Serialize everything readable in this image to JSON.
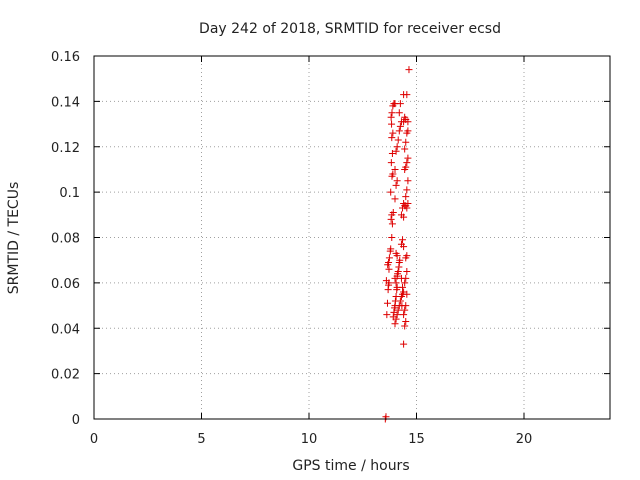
{
  "chart_data": {
    "type": "scatter",
    "title": "Day 242 of 2018, SRMTID for receiver ecsd",
    "xlabel": "GPS time / hours",
    "ylabel": "SRMTID / TECUs",
    "xlim": [
      0,
      24
    ],
    "ylim": [
      0,
      0.16
    ],
    "xticks": [
      0,
      5,
      10,
      15,
      20
    ],
    "xtick_labels": [
      "0",
      "5",
      "10",
      "15",
      "20"
    ],
    "yticks": [
      0,
      0.02,
      0.04,
      0.06,
      0.08,
      0.1,
      0.12,
      0.14,
      0.16
    ],
    "ytick_labels": [
      "0",
      "0.02",
      "0.04",
      "0.06",
      "0.08",
      "0.1",
      "0.12",
      "0.14",
      "0.16"
    ],
    "grid": true,
    "marker": "+",
    "color": "#dd0000",
    "series": [
      {
        "name": "SRMTID",
        "points": [
          [
            13.55,
            0.0
          ],
          [
            13.58,
            0.001
          ],
          [
            13.62,
            0.046
          ],
          [
            13.65,
            0.051
          ],
          [
            13.68,
            0.057
          ],
          [
            13.7,
            0.059
          ],
          [
            13.72,
            0.06
          ],
          [
            13.6,
            0.061
          ],
          [
            13.66,
            0.068
          ],
          [
            13.7,
            0.069
          ],
          [
            13.74,
            0.071
          ],
          [
            13.78,
            0.074
          ],
          [
            13.8,
            0.075
          ],
          [
            13.72,
            0.066
          ],
          [
            13.85,
            0.08
          ],
          [
            13.88,
            0.086
          ],
          [
            13.82,
            0.088
          ],
          [
            13.85,
            0.09
          ],
          [
            13.92,
            0.091
          ],
          [
            13.8,
            0.1
          ],
          [
            13.86,
            0.107
          ],
          [
            13.9,
            0.108
          ],
          [
            13.83,
            0.113
          ],
          [
            13.88,
            0.117
          ],
          [
            13.85,
            0.124
          ],
          [
            13.9,
            0.126
          ],
          [
            13.84,
            0.13
          ],
          [
            13.82,
            0.133
          ],
          [
            13.86,
            0.135
          ],
          [
            13.9,
            0.138
          ],
          [
            13.95,
            0.139
          ],
          [
            14.0,
            0.139
          ],
          [
            13.92,
            0.045
          ],
          [
            13.95,
            0.047
          ],
          [
            13.98,
            0.049
          ],
          [
            14.0,
            0.05
          ],
          [
            14.02,
            0.052
          ],
          [
            14.05,
            0.054
          ],
          [
            14.08,
            0.057
          ],
          [
            14.1,
            0.058
          ],
          [
            14.05,
            0.06
          ],
          [
            14.0,
            0.062
          ],
          [
            14.1,
            0.063
          ],
          [
            14.12,
            0.064
          ],
          [
            14.15,
            0.065
          ],
          [
            14.18,
            0.067
          ],
          [
            14.2,
            0.069
          ],
          [
            14.22,
            0.07
          ],
          [
            14.1,
            0.072
          ],
          [
            14.05,
            0.073
          ],
          [
            14.0,
            0.042
          ],
          [
            14.05,
            0.044
          ],
          [
            14.1,
            0.046
          ],
          [
            14.15,
            0.048
          ],
          [
            14.2,
            0.05
          ],
          [
            14.25,
            0.052
          ],
          [
            14.3,
            0.054
          ],
          [
            14.35,
            0.055
          ],
          [
            14.0,
            0.097
          ],
          [
            14.05,
            0.103
          ],
          [
            14.1,
            0.105
          ],
          [
            14.0,
            0.11
          ],
          [
            14.05,
            0.118
          ],
          [
            14.1,
            0.12
          ],
          [
            14.15,
            0.123
          ],
          [
            14.2,
            0.127
          ],
          [
            14.25,
            0.129
          ],
          [
            14.3,
            0.131
          ],
          [
            14.2,
            0.135
          ],
          [
            14.25,
            0.139
          ],
          [
            14.3,
            0.09
          ],
          [
            14.35,
            0.093
          ],
          [
            14.4,
            0.095
          ],
          [
            14.3,
            0.077
          ],
          [
            14.35,
            0.079
          ],
          [
            14.4,
            0.076
          ],
          [
            14.3,
            0.062
          ],
          [
            14.35,
            0.058
          ],
          [
            14.4,
            0.056
          ],
          [
            14.32,
            0.05
          ],
          [
            14.4,
            0.033
          ],
          [
            14.45,
            0.041
          ],
          [
            14.5,
            0.043
          ],
          [
            14.4,
            0.046
          ],
          [
            14.45,
            0.048
          ],
          [
            14.5,
            0.05
          ],
          [
            14.55,
            0.055
          ],
          [
            14.45,
            0.06
          ],
          [
            14.5,
            0.062
          ],
          [
            14.55,
            0.065
          ],
          [
            14.5,
            0.071
          ],
          [
            14.55,
            0.072
          ],
          [
            14.4,
            0.089
          ],
          [
            14.45,
            0.094
          ],
          [
            14.5,
            0.094
          ],
          [
            14.55,
            0.093
          ],
          [
            14.6,
            0.095
          ],
          [
            14.5,
            0.098
          ],
          [
            14.55,
            0.101
          ],
          [
            14.6,
            0.105
          ],
          [
            14.45,
            0.11
          ],
          [
            14.5,
            0.111
          ],
          [
            14.55,
            0.113
          ],
          [
            14.6,
            0.115
          ],
          [
            14.45,
            0.119
          ],
          [
            14.5,
            0.122
          ],
          [
            14.55,
            0.126
          ],
          [
            14.6,
            0.127
          ],
          [
            14.4,
            0.131
          ],
          [
            14.45,
            0.133
          ],
          [
            14.5,
            0.132
          ],
          [
            14.6,
            0.131
          ],
          [
            14.4,
            0.143
          ],
          [
            14.55,
            0.143
          ],
          [
            14.65,
            0.154
          ]
        ]
      }
    ]
  }
}
